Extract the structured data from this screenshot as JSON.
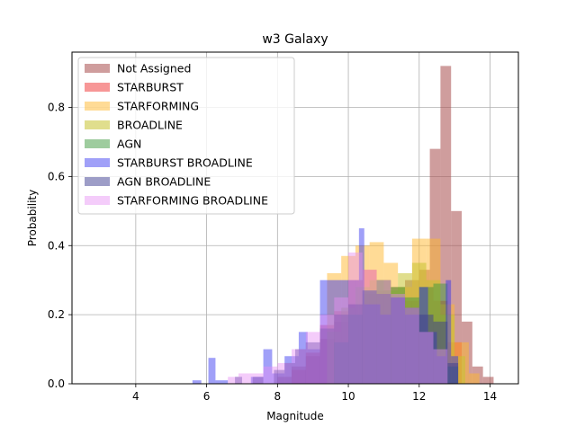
{
  "chart_data": {
    "type": "histogram",
    "title": "w3 Galaxy",
    "xlabel": "Magnitude",
    "ylabel": "Probability",
    "xlim": [
      2.2,
      14.8
    ],
    "ylim": [
      0,
      0.96
    ],
    "xticks": [
      4,
      6,
      8,
      10,
      12,
      14
    ],
    "xtick_labels": [
      "4",
      "6",
      "8",
      "10",
      "12",
      "14"
    ],
    "yticks": [
      0.0,
      0.2,
      0.4,
      0.6,
      0.8
    ],
    "ytick_labels": [
      "0.0",
      "0.2",
      "0.4",
      "0.6",
      "0.8"
    ],
    "grid": true,
    "legend_position": "upper left",
    "series": [
      {
        "name": "Not Assigned",
        "color": "#a84c4c",
        "alpha": 0.55,
        "bins": [
          [
            8.0,
            8.4,
            0.02
          ],
          [
            8.4,
            8.8,
            0.05
          ],
          [
            8.8,
            9.2,
            0.08
          ],
          [
            9.2,
            9.6,
            0.13
          ],
          [
            9.6,
            10.0,
            0.18
          ],
          [
            10.0,
            10.4,
            0.23
          ],
          [
            10.4,
            10.8,
            0.26
          ],
          [
            10.8,
            11.2,
            0.27
          ],
          [
            11.2,
            11.6,
            0.28
          ],
          [
            11.6,
            12.0,
            0.3
          ],
          [
            12.0,
            12.3,
            0.33
          ],
          [
            12.3,
            12.6,
            0.68
          ],
          [
            12.6,
            12.9,
            0.92
          ],
          [
            12.9,
            13.2,
            0.5
          ],
          [
            13.2,
            13.5,
            0.18
          ],
          [
            13.5,
            13.8,
            0.05
          ],
          [
            13.8,
            14.1,
            0.02
          ]
        ]
      },
      {
        "name": "STARBURST",
        "color": "#f03030",
        "alpha": 0.5,
        "bins": [
          [
            8.4,
            8.8,
            0.04
          ],
          [
            8.8,
            9.2,
            0.09
          ],
          [
            9.2,
            9.6,
            0.17
          ],
          [
            9.6,
            10.0,
            0.21
          ],
          [
            10.0,
            10.4,
            0.3
          ],
          [
            10.4,
            10.8,
            0.33
          ],
          [
            10.8,
            11.2,
            0.3
          ],
          [
            11.2,
            11.6,
            0.26
          ],
          [
            11.6,
            12.0,
            0.24
          ],
          [
            12.0,
            12.4,
            0.28
          ],
          [
            12.4,
            12.8,
            0.24
          ],
          [
            12.8,
            13.2,
            0.12
          ]
        ]
      },
      {
        "name": "STARFORMING",
        "color": "#ffb82e",
        "alpha": 0.5,
        "bins": [
          [
            9.4,
            9.8,
            0.32
          ],
          [
            9.8,
            10.2,
            0.37
          ],
          [
            10.2,
            10.6,
            0.4
          ],
          [
            10.6,
            11.0,
            0.41
          ],
          [
            11.0,
            11.4,
            0.35
          ],
          [
            11.4,
            11.8,
            0.28
          ],
          [
            11.8,
            12.2,
            0.42
          ],
          [
            12.2,
            12.6,
            0.42
          ],
          [
            12.6,
            13.0,
            0.23
          ],
          [
            13.0,
            13.4,
            0.12
          ],
          [
            13.4,
            13.7,
            0.03
          ]
        ]
      },
      {
        "name": "BROADLINE",
        "color": "#c7c230",
        "alpha": 0.55,
        "bins": [
          [
            9.4,
            9.8,
            0.15
          ],
          [
            9.8,
            10.2,
            0.22
          ],
          [
            10.2,
            10.6,
            0.28
          ],
          [
            10.6,
            11.0,
            0.3
          ],
          [
            11.0,
            11.4,
            0.27
          ],
          [
            11.4,
            11.8,
            0.32
          ],
          [
            11.8,
            12.2,
            0.35
          ],
          [
            12.2,
            12.6,
            0.3
          ],
          [
            12.6,
            13.0,
            0.2
          ],
          [
            13.0,
            13.3,
            0.08
          ]
        ]
      },
      {
        "name": "AGN",
        "color": "#3d9a3d",
        "alpha": 0.5,
        "bins": [
          [
            9.6,
            10.0,
            0.12
          ],
          [
            10.0,
            10.4,
            0.2
          ],
          [
            10.4,
            10.8,
            0.27
          ],
          [
            10.8,
            11.2,
            0.3
          ],
          [
            11.2,
            11.6,
            0.28
          ],
          [
            11.6,
            12.0,
            0.25
          ],
          [
            12.0,
            12.4,
            0.28
          ],
          [
            12.4,
            12.8,
            0.29
          ],
          [
            12.8,
            13.1,
            0.05
          ]
        ]
      },
      {
        "name": "STARBURST BROADLINE",
        "color": "#2c2cf0",
        "alpha": 0.45,
        "bins": [
          [
            5.6,
            5.85,
            0.01
          ],
          [
            6.05,
            6.25,
            0.075
          ],
          [
            6.25,
            6.6,
            0.01
          ],
          [
            7.25,
            7.6,
            0.02
          ],
          [
            7.6,
            7.85,
            0.1
          ],
          [
            7.85,
            8.2,
            0.03
          ],
          [
            8.2,
            8.6,
            0.08
          ],
          [
            8.6,
            8.85,
            0.15
          ],
          [
            8.85,
            9.2,
            0.1
          ],
          [
            9.2,
            10.3,
            0.3
          ],
          [
            10.3,
            10.45,
            0.45
          ],
          [
            10.45,
            10.9,
            0.23
          ],
          [
            10.9,
            11.2,
            0.2
          ],
          [
            11.2,
            11.6,
            0.25
          ],
          [
            11.6,
            12.0,
            0.2
          ],
          [
            12.0,
            12.25,
            0.28
          ],
          [
            12.25,
            12.5,
            0.15
          ],
          [
            12.5,
            12.75,
            0.08
          ],
          [
            12.75,
            12.9,
            0.3
          ],
          [
            12.9,
            13.1,
            0.08
          ]
        ]
      },
      {
        "name": "AGN BROADLINE",
        "color": "#3b3b8f",
        "alpha": 0.5,
        "bins": [
          [
            6.8,
            7.0,
            0.02
          ],
          [
            7.3,
            7.6,
            0.02
          ],
          [
            7.9,
            8.2,
            0.04
          ],
          [
            8.2,
            8.5,
            0.06
          ],
          [
            8.5,
            8.8,
            0.1
          ],
          [
            8.8,
            9.2,
            0.12
          ],
          [
            9.2,
            9.6,
            0.16
          ],
          [
            9.6,
            10.0,
            0.2
          ],
          [
            10.0,
            10.4,
            0.23
          ],
          [
            10.4,
            10.8,
            0.27
          ],
          [
            10.8,
            11.2,
            0.26
          ],
          [
            11.2,
            11.6,
            0.25
          ],
          [
            11.6,
            12.0,
            0.22
          ],
          [
            12.0,
            12.4,
            0.2
          ],
          [
            12.4,
            12.8,
            0.18
          ],
          [
            12.8,
            13.1,
            0.06
          ]
        ]
      },
      {
        "name": "STARFORMING BROADLINE",
        "color": "#e78ef5",
        "alpha": 0.45,
        "bins": [
          [
            6.6,
            6.9,
            0.02
          ],
          [
            6.9,
            7.2,
            0.03
          ],
          [
            7.2,
            7.6,
            0.03
          ],
          [
            7.6,
            8.0,
            0.05
          ],
          [
            8.0,
            8.4,
            0.06
          ],
          [
            8.4,
            8.8,
            0.1
          ],
          [
            8.8,
            9.2,
            0.15
          ],
          [
            9.2,
            9.6,
            0.2
          ],
          [
            9.6,
            10.0,
            0.25
          ],
          [
            10.0,
            10.4,
            0.38
          ],
          [
            10.4,
            10.8,
            0.33
          ],
          [
            10.8,
            11.2,
            0.3
          ],
          [
            11.2,
            11.6,
            0.26
          ],
          [
            11.6,
            12.0,
            0.22
          ],
          [
            12.0,
            12.4,
            0.15
          ],
          [
            12.4,
            12.8,
            0.1
          ]
        ]
      }
    ]
  }
}
